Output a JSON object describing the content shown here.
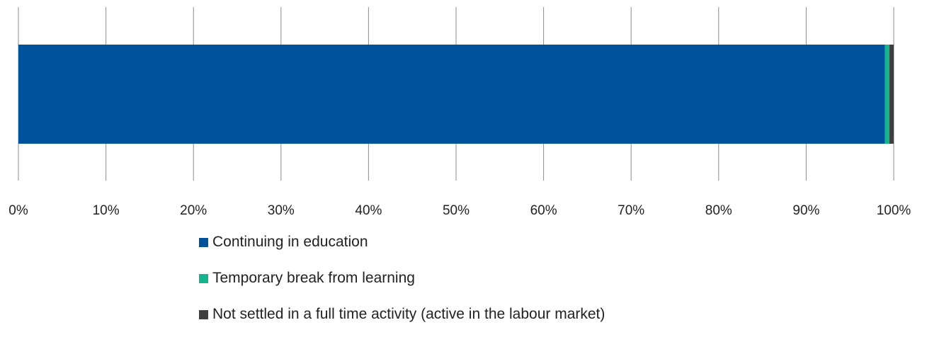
{
  "chart_data": {
    "type": "bar",
    "orientation": "horizontal",
    "stacked": true,
    "percent_stacked": true,
    "categories": [
      ""
    ],
    "series": [
      {
        "name": "Continuing in education",
        "values": [
          99.0
        ],
        "color": "#00529B"
      },
      {
        "name": "Temporary break from learning",
        "values": [
          0.5
        ],
        "color": "#14B48C"
      },
      {
        "name": "Not settled in a full time activity (active in the labour market)",
        "values": [
          0.5
        ],
        "color": "#3F3F3F"
      }
    ],
    "x_ticks": [
      "0%",
      "10%",
      "20%",
      "30%",
      "40%",
      "50%",
      "60%",
      "70%",
      "80%",
      "90%",
      "100%"
    ],
    "xlim": [
      0,
      100
    ],
    "grid": "vertical",
    "legend_position": "bottom"
  }
}
